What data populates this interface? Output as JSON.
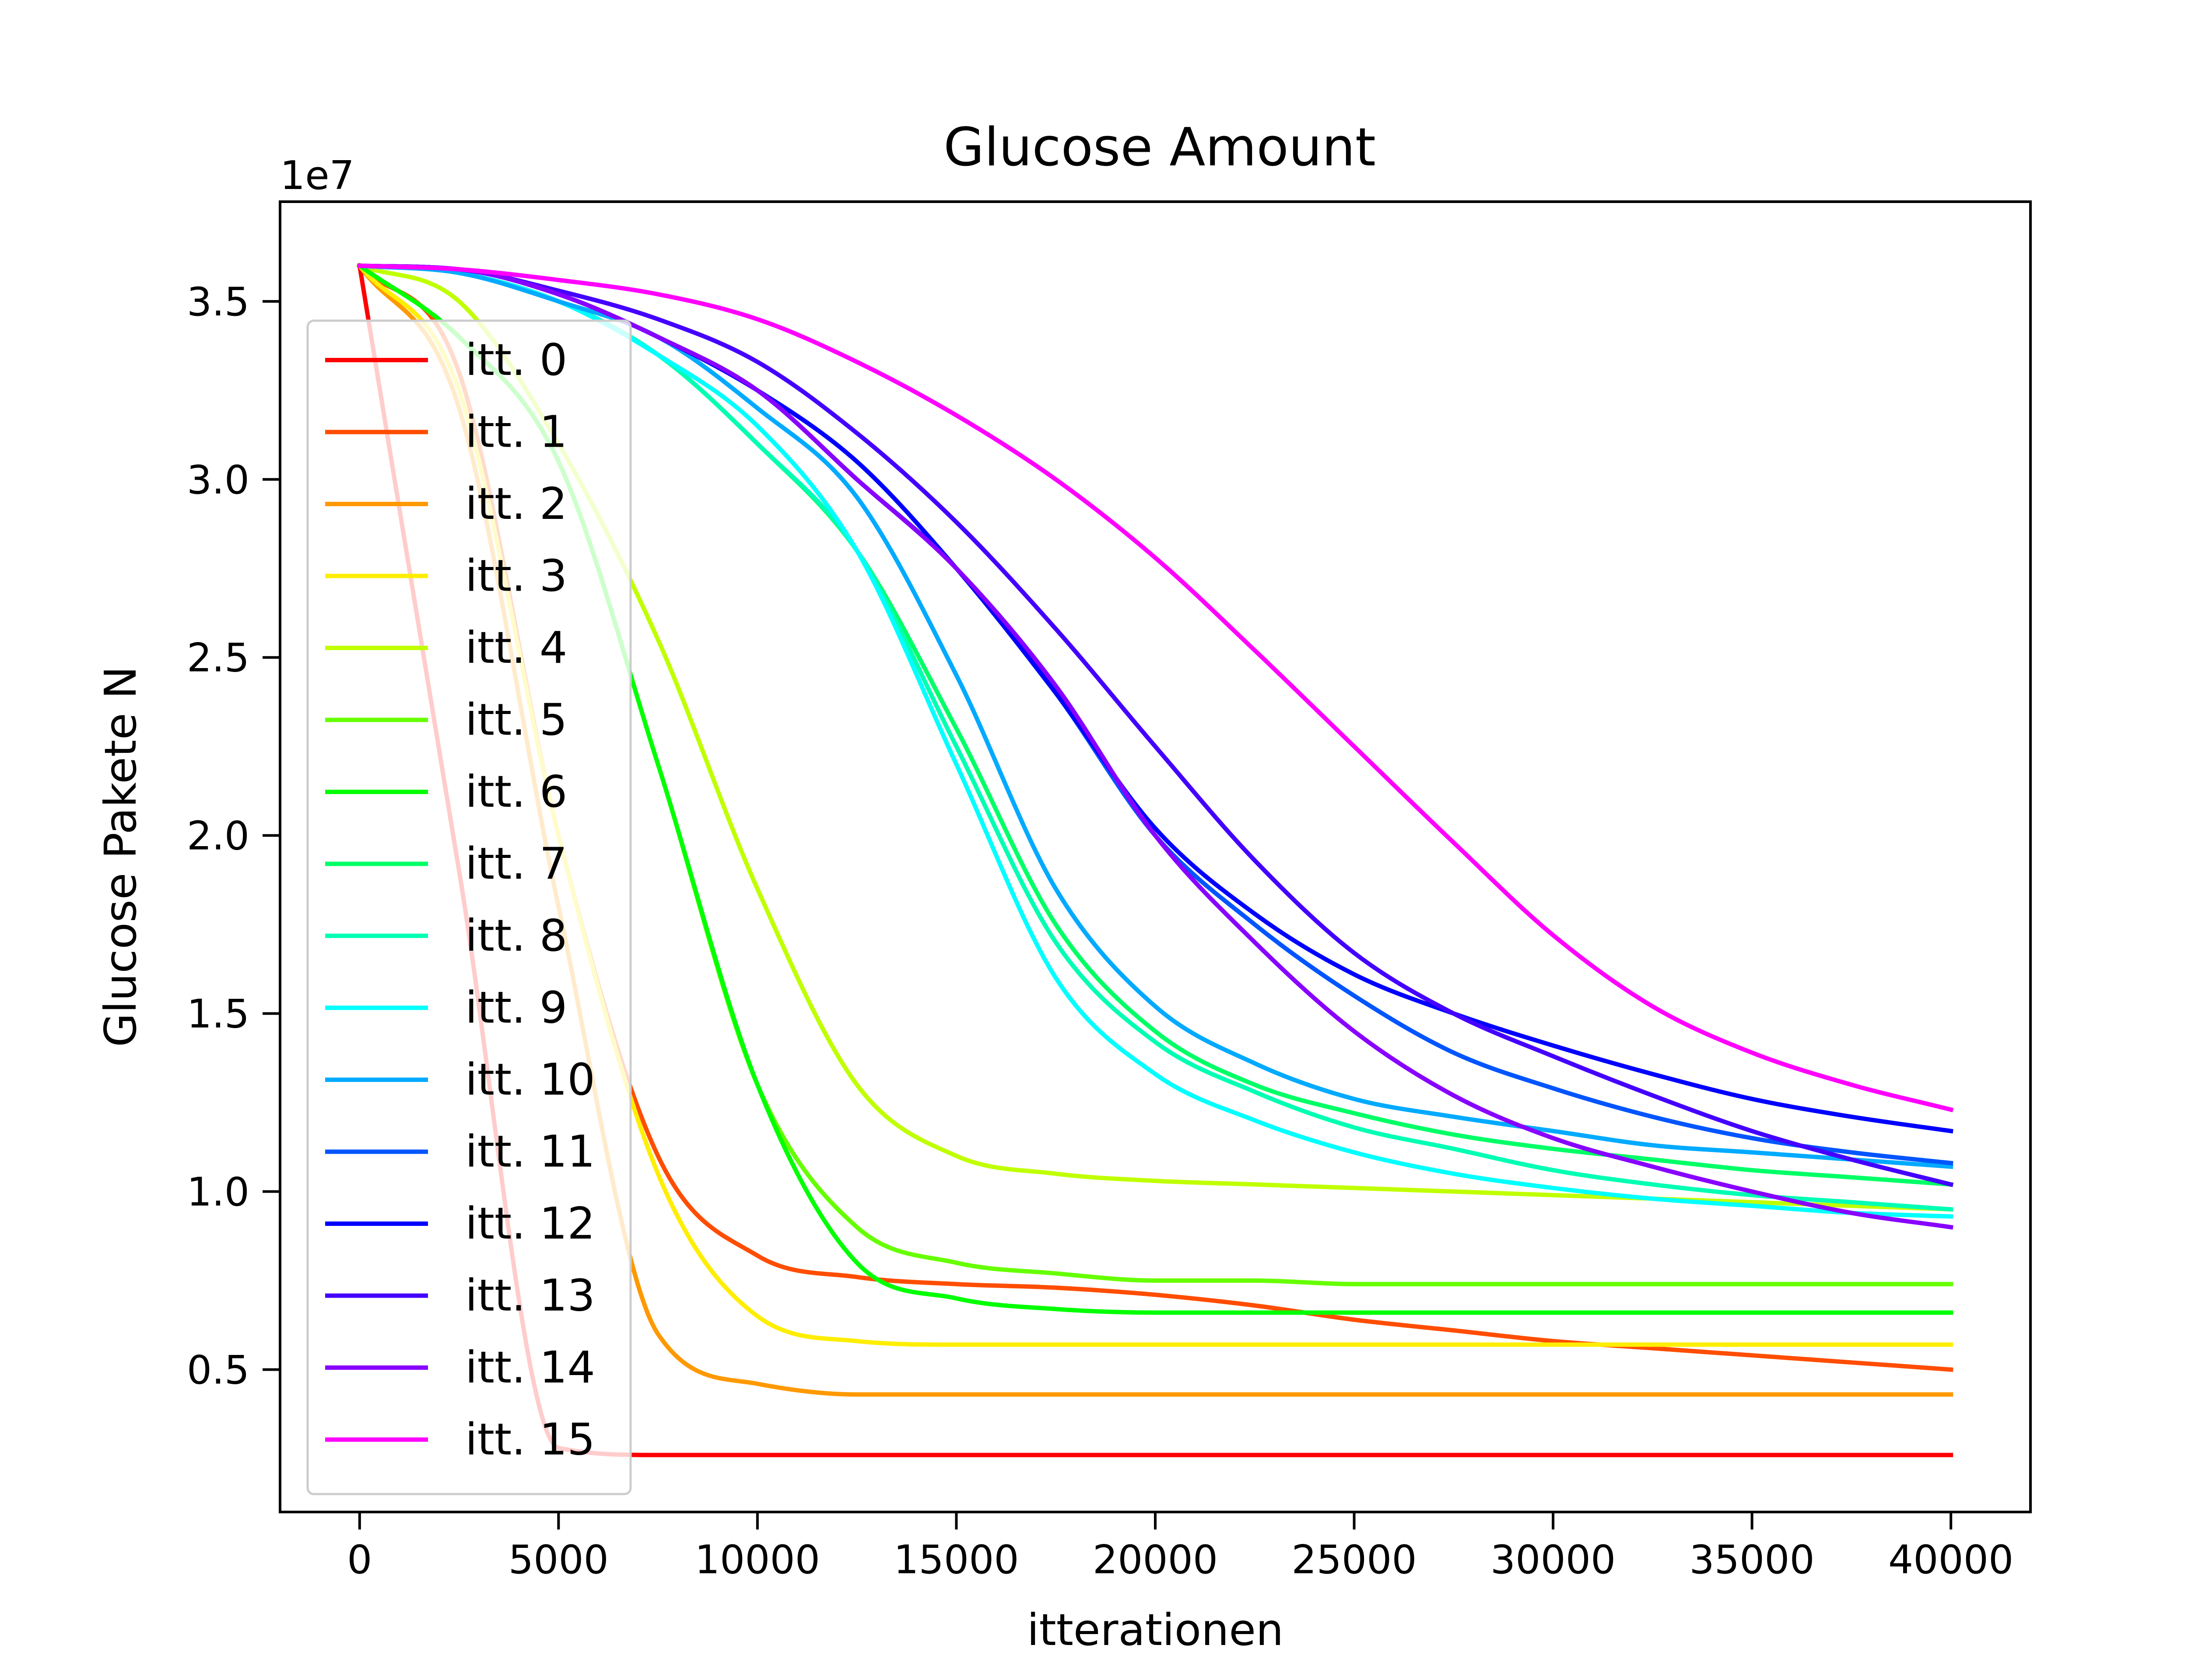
{
  "chart_data": {
    "type": "line",
    "title": "Glucose Amount",
    "xlabel": "itterationen",
    "ylabel": "Glucose Pakete N",
    "y_offset_label": "1e7",
    "xlim": [
      -2000,
      42000
    ],
    "ylim": [
      0.1,
      3.78
    ],
    "y_scale_factor": 10000000,
    "xticks": [
      0,
      5000,
      10000,
      15000,
      20000,
      25000,
      30000,
      35000,
      40000
    ],
    "yticks": [
      0.5,
      1.0,
      1.5,
      2.0,
      2.5,
      3.0,
      3.5
    ],
    "ytick_labels": [
      "0.5",
      "1.0",
      "1.5",
      "2.0",
      "2.5",
      "3.0",
      "3.5"
    ],
    "grid": false,
    "legend_position": "upper-left",
    "x": [
      0,
      2500,
      5000,
      7500,
      10000,
      12500,
      15000,
      17500,
      20000,
      22500,
      25000,
      27500,
      30000,
      32500,
      35000,
      37500,
      40000
    ],
    "series": [
      {
        "name": "itt. 0",
        "color": "#ff0000",
        "values": [
          3.6,
          1.9,
          0.28,
          0.26,
          0.26,
          0.26,
          0.26,
          0.26,
          0.26,
          0.26,
          0.26,
          0.26,
          0.26,
          0.26,
          0.26,
          0.26,
          0.26
        ]
      },
      {
        "name": "itt. 1",
        "color": "#ff4d00",
        "values": [
          3.6,
          3.3,
          2.0,
          1.1,
          0.82,
          0.76,
          0.74,
          0.73,
          0.71,
          0.68,
          0.64,
          0.61,
          0.58,
          0.56,
          0.54,
          0.52,
          0.5
        ]
      },
      {
        "name": "itt. 2",
        "color": "#ff9900",
        "values": [
          3.6,
          3.2,
          1.8,
          0.6,
          0.46,
          0.43,
          0.43,
          0.43,
          0.43,
          0.43,
          0.43,
          0.43,
          0.43,
          0.43,
          0.43,
          0.43,
          0.43
        ]
      },
      {
        "name": "itt. 3",
        "color": "#ffee00",
        "values": [
          3.6,
          3.25,
          2.0,
          1.05,
          0.65,
          0.58,
          0.57,
          0.57,
          0.57,
          0.57,
          0.57,
          0.57,
          0.57,
          0.57,
          0.57,
          0.57,
          0.57
        ]
      },
      {
        "name": "itt. 4",
        "color": "#c0ff00",
        "values": [
          3.6,
          3.5,
          3.1,
          2.55,
          1.85,
          1.3,
          1.1,
          1.05,
          1.03,
          1.02,
          1.01,
          1.0,
          0.99,
          0.98,
          0.97,
          0.96,
          0.95
        ]
      },
      {
        "name": "itt. 5",
        "color": "#66ff00",
        "values": [
          3.6,
          3.4,
          3.05,
          2.2,
          1.3,
          0.9,
          0.8,
          0.77,
          0.75,
          0.75,
          0.74,
          0.74,
          0.74,
          0.74,
          0.74,
          0.74,
          0.74
        ]
      },
      {
        "name": "itt. 6",
        "color": "#00ff00",
        "values": [
          3.6,
          3.4,
          3.05,
          2.2,
          1.3,
          0.8,
          0.7,
          0.67,
          0.66,
          0.66,
          0.66,
          0.66,
          0.66,
          0.66,
          0.66,
          0.66,
          0.66
        ]
      },
      {
        "name": "itt. 7",
        "color": "#00ff66",
        "values": [
          3.6,
          3.58,
          3.5,
          3.35,
          3.1,
          2.8,
          2.3,
          1.75,
          1.45,
          1.3,
          1.22,
          1.16,
          1.12,
          1.09,
          1.06,
          1.04,
          1.02
        ]
      },
      {
        "name": "itt. 8",
        "color": "#00ffb3",
        "values": [
          3.6,
          3.58,
          3.5,
          3.35,
          3.1,
          2.8,
          2.25,
          1.7,
          1.42,
          1.28,
          1.18,
          1.12,
          1.06,
          1.02,
          0.99,
          0.97,
          0.95
        ]
      },
      {
        "name": "itt. 9",
        "color": "#00ffff",
        "values": [
          3.6,
          3.58,
          3.5,
          3.35,
          3.15,
          2.8,
          2.2,
          1.6,
          1.33,
          1.2,
          1.11,
          1.05,
          1.01,
          0.98,
          0.96,
          0.94,
          0.93
        ]
      },
      {
        "name": "itt. 10",
        "color": "#00aaff",
        "values": [
          3.6,
          3.58,
          3.5,
          3.4,
          3.2,
          2.95,
          2.45,
          1.85,
          1.52,
          1.36,
          1.26,
          1.21,
          1.17,
          1.13,
          1.11,
          1.09,
          1.07
        ]
      },
      {
        "name": "itt. 11",
        "color": "#0055ff",
        "values": [
          3.6,
          3.59,
          3.52,
          3.4,
          3.25,
          3.0,
          2.75,
          2.4,
          2.0,
          1.75,
          1.55,
          1.39,
          1.29,
          1.21,
          1.15,
          1.11,
          1.08
        ]
      },
      {
        "name": "itt. 12",
        "color": "#0000ff",
        "values": [
          3.6,
          3.59,
          3.52,
          3.4,
          3.25,
          3.05,
          2.75,
          2.4,
          2.02,
          1.78,
          1.61,
          1.5,
          1.41,
          1.33,
          1.26,
          1.21,
          1.17
        ]
      },
      {
        "name": "itt. 13",
        "color": "#4400ff",
        "values": [
          3.6,
          3.59,
          3.53,
          3.45,
          3.33,
          3.13,
          2.88,
          2.58,
          2.25,
          1.93,
          1.67,
          1.5,
          1.38,
          1.27,
          1.17,
          1.09,
          1.02
        ]
      },
      {
        "name": "itt. 14",
        "color": "#8800ff",
        "values": [
          3.6,
          3.59,
          3.52,
          3.4,
          3.25,
          3.0,
          2.75,
          2.42,
          2.0,
          1.7,
          1.45,
          1.27,
          1.15,
          1.07,
          1.0,
          0.94,
          0.9
        ]
      },
      {
        "name": "itt. 15",
        "color": "#ff00ff",
        "values": [
          3.6,
          3.59,
          3.56,
          3.52,
          3.45,
          3.33,
          3.18,
          3.0,
          2.78,
          2.52,
          2.25,
          1.98,
          1.72,
          1.52,
          1.39,
          1.3,
          1.23
        ]
      }
    ]
  }
}
